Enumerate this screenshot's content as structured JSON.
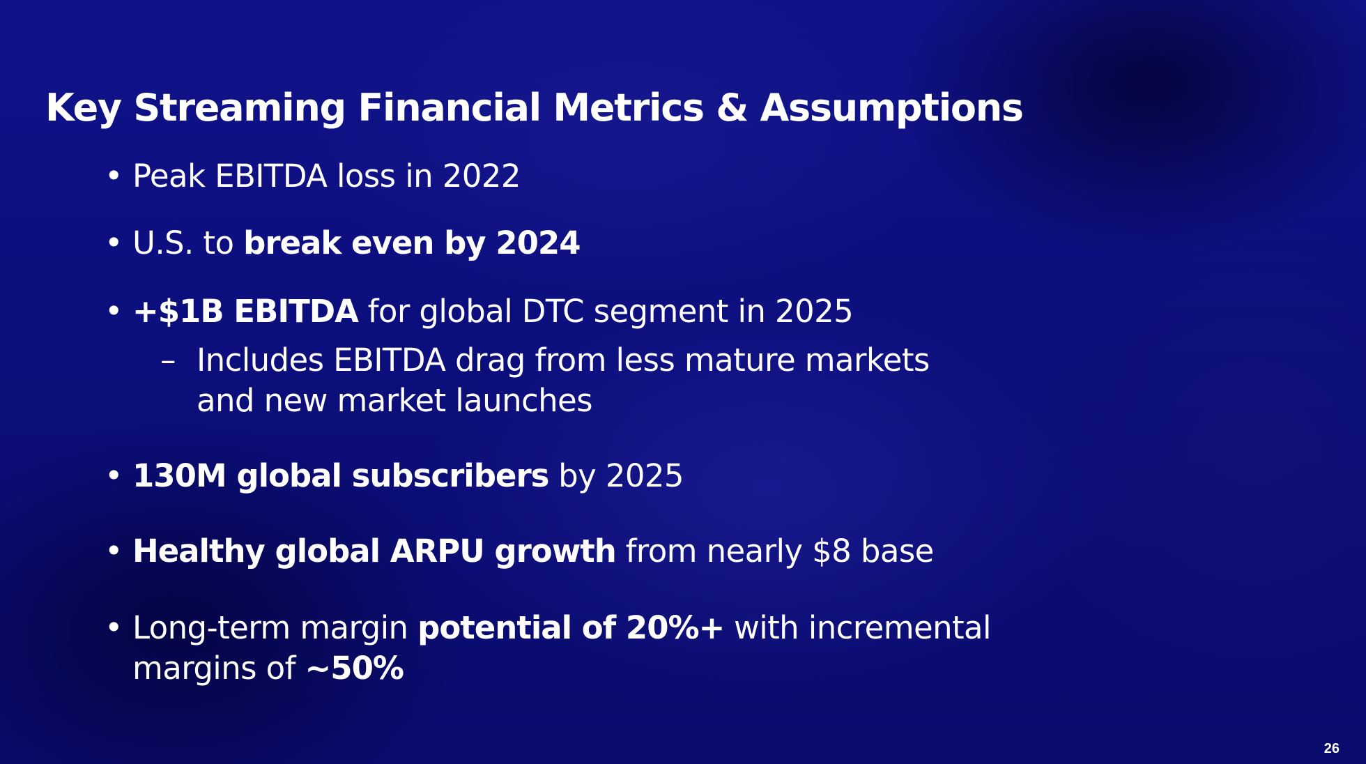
{
  "slide": {
    "title": "Key Streaming Financial Metrics & Assumptions",
    "page_number": "26",
    "bullet_marker": "•",
    "sub_bullet_marker": "–"
  },
  "bullets": [
    {
      "segments": [
        {
          "text": "Peak EBITDA loss in 2022",
          "bold": false
        }
      ]
    },
    {
      "segments": [
        {
          "text": "U.S. to ",
          "bold": false
        },
        {
          "text": "break even by 2024",
          "bold": true
        }
      ]
    },
    {
      "segments": [
        {
          "text": "+$1B EBITDA",
          "bold": true
        },
        {
          "text": " for global DTC segment in 2025",
          "bold": false
        }
      ],
      "sub_bullet": {
        "line1": "Includes EBITDA drag from less mature markets",
        "line2": "and new market launches"
      }
    },
    {
      "segments": [
        {
          "text": "130M global subscribers",
          "bold": true
        },
        {
          "text": " by 2025",
          "bold": false
        }
      ]
    },
    {
      "segments": [
        {
          "text": "Healthy global ARPU growth",
          "bold": true
        },
        {
          "text": " from nearly $8 base",
          "bold": false
        }
      ]
    },
    {
      "segments": [
        {
          "text": "Long-term margin ",
          "bold": false
        },
        {
          "text": "potential of 20%+",
          "bold": true
        },
        {
          "text": " with incremental",
          "bold": false
        }
      ],
      "line2_segments": [
        {
          "text": "margins of ",
          "bold": false
        },
        {
          "text": "~50%",
          "bold": true
        }
      ]
    }
  ]
}
